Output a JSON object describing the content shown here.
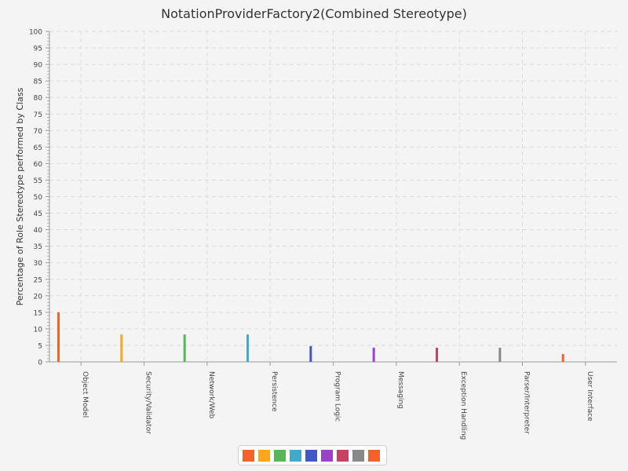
{
  "chart_data": {
    "type": "bar",
    "title": "NotationProviderFactory2(Combined Stereotype)",
    "xlabel": "",
    "ylabel": "Percentage of Role Stereotype performed by Class",
    "ylim": [
      0,
      100
    ],
    "y_major_ticks": [
      "0",
      "5",
      "10",
      "15",
      "20",
      "25",
      "30",
      "35",
      "40",
      "45",
      "50",
      "55",
      "60",
      "65",
      "70",
      "75",
      "80",
      "85",
      "90",
      "95",
      "100"
    ],
    "grid": true,
    "legend_position": "bottom",
    "categories": [
      "Object Model",
      "Security/Validator",
      "Network/Web",
      "Persistence",
      "Program Logic",
      "Messaging",
      "Exception Handling",
      "Parser/Interpreter",
      "User Interface"
    ],
    "values": [
      15,
      8.3,
      8.3,
      8.3,
      4.8,
      4.3,
      4.3,
      4.3,
      2.4
    ],
    "colors": [
      "#f3622d",
      "#fba71b",
      "#57b757",
      "#41a9c9",
      "#4258c9",
      "#9a42c8",
      "#c84164",
      "#888888",
      "#f3622d"
    ]
  }
}
